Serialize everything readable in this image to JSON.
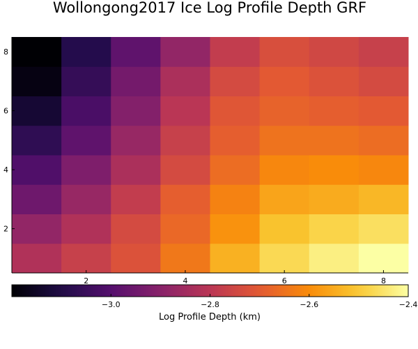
{
  "chart_data": {
    "type": "heatmap",
    "title": "Wollongong2017 Ice Log Profile Depth GRF",
    "xlabel": "",
    "ylabel": "",
    "x": [
      1,
      2,
      3,
      4,
      5,
      6,
      7,
      8
    ],
    "y": [
      1,
      2,
      3,
      4,
      5,
      6,
      7,
      8
    ],
    "xlim": [
      0.5,
      8.5
    ],
    "ylim": [
      0.5,
      8.5
    ],
    "x_ticks": [
      2,
      4,
      6,
      8
    ],
    "y_ticks": [
      2,
      4,
      6,
      8
    ],
    "z_rows_bottom_to_top": [
      [
        -2.82,
        -2.77,
        -2.72,
        -2.64,
        -2.54,
        -2.47,
        -2.43,
        -2.4
      ],
      [
        -2.88,
        -2.82,
        -2.74,
        -2.67,
        -2.59,
        -2.51,
        -2.48,
        -2.46
      ],
      [
        -2.95,
        -2.87,
        -2.78,
        -2.69,
        -2.62,
        -2.56,
        -2.55,
        -2.53
      ],
      [
        -3.01,
        -2.92,
        -2.83,
        -2.74,
        -2.66,
        -2.61,
        -2.6,
        -2.61
      ],
      [
        -3.07,
        -2.98,
        -2.87,
        -2.77,
        -2.69,
        -2.65,
        -2.65,
        -2.66
      ],
      [
        -3.13,
        -3.02,
        -2.91,
        -2.8,
        -2.71,
        -2.68,
        -2.69,
        -2.7
      ],
      [
        -3.18,
        -3.06,
        -2.94,
        -2.83,
        -2.74,
        -2.7,
        -2.72,
        -2.74
      ],
      [
        -3.2,
        -3.09,
        -2.98,
        -2.88,
        -2.78,
        -2.73,
        -2.75,
        -2.77
      ]
    ],
    "colorbar": {
      "label": "Log Profile Depth (km)",
      "min": -3.2,
      "max": -2.4,
      "ticks": [
        -3.0,
        -2.8,
        -2.6,
        -2.4
      ],
      "tick_labels": [
        "−3.0",
        "−2.8",
        "−2.6",
        "−2.4"
      ],
      "colormap": "inferno",
      "orientation": "horizontal",
      "placement": "bottom"
    },
    "grid": false,
    "colors": {
      "axis": "#000000",
      "background": "#ffffff"
    }
  }
}
